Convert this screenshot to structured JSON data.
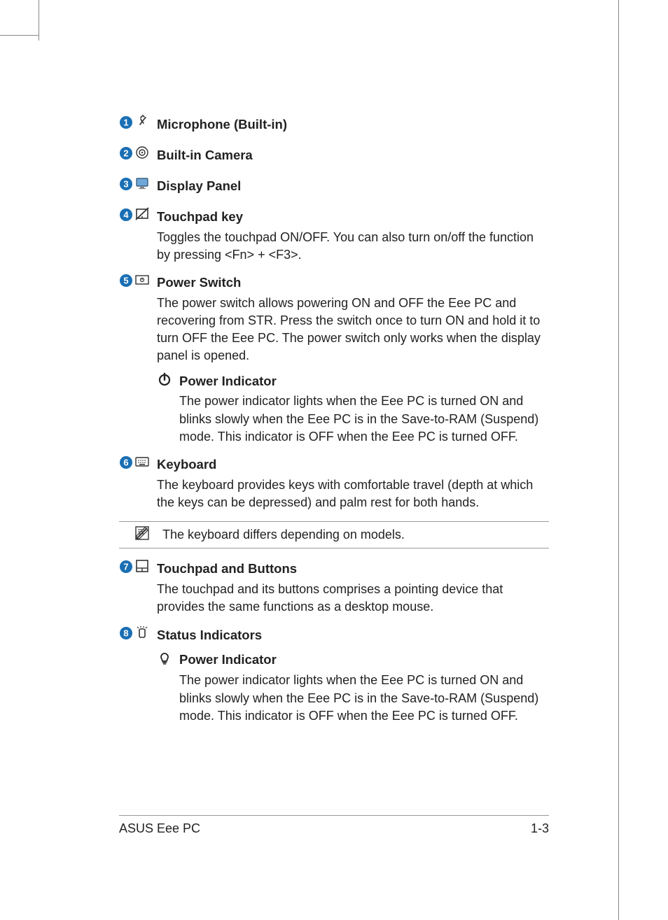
{
  "colors": {
    "accent": "#1a6fb4",
    "text": "#222222",
    "rule": "#999999",
    "icon": "#333333"
  },
  "items": [
    {
      "num": "1",
      "title": "Microphone (Built-in)",
      "desc": "",
      "icon": "mic"
    },
    {
      "num": "2",
      "title": "Built-in Camera",
      "desc": "",
      "icon": "camera"
    },
    {
      "num": "3",
      "title": "Display Panel",
      "desc": "",
      "icon": "display"
    },
    {
      "num": "4",
      "title": "Touchpad key",
      "desc": "Toggles the touchpad ON/OFF. You can also turn on/off the function by pressing <Fn> + <F3>.",
      "icon": "touchpadkey"
    },
    {
      "num": "5",
      "title": "Power Switch",
      "desc": "The power switch allows powering ON and OFF the Eee PC and recovering from STR. Press the switch once to turn ON and hold it to turn OFF the Eee PC. The power switch only works when the display panel is opened.",
      "icon": "powerswitch",
      "sub": {
        "title": "Power Indicator",
        "desc": "The power indicator lights when the Eee PC is turned ON and blinks slowly when the Eee PC is in the Save-to-RAM (Suspend) mode. This indicator is OFF when the Eee PC is turned OFF.",
        "icon": "power"
      }
    },
    {
      "num": "6",
      "title": "Keyboard",
      "desc": "The keyboard provides keys with comfortable travel (depth at which the keys can be depressed) and palm rest for both hands.",
      "icon": "keyboard"
    },
    {
      "note": "The keyboard differs depending on models."
    },
    {
      "num": "7",
      "title": "Touchpad and Buttons",
      "desc": "The touchpad and its buttons comprises a pointing device that provides the same functions as a desktop mouse.",
      "icon": "touchpad"
    },
    {
      "num": "8",
      "title": "Status Indicators",
      "desc": "",
      "icon": "status",
      "sub": {
        "title": "Power Indicator",
        "desc": "The power indicator lights when the Eee PC is turned ON and blinks slowly when the Eee PC is in the Save-to-RAM (Suspend) mode. This indicator is OFF when the Eee PC is turned OFF.",
        "icon": "bulb"
      }
    }
  ],
  "footer": {
    "left": "ASUS Eee PC",
    "right": "1-3"
  }
}
